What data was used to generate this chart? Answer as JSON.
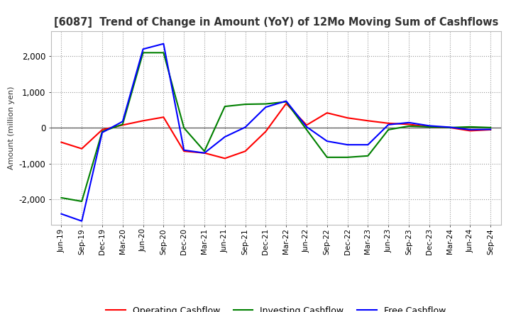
{
  "title": "[6087]  Trend of Change in Amount (YoY) of 12Mo Moving Sum of Cashflows",
  "ylabel": "Amount (million yen)",
  "x_labels": [
    "Jun-19",
    "Sep-19",
    "Dec-19",
    "Mar-20",
    "Jun-20",
    "Sep-20",
    "Dec-20",
    "Mar-21",
    "Jun-21",
    "Sep-21",
    "Dec-21",
    "Mar-22",
    "Jun-22",
    "Sep-22",
    "Dec-22",
    "Mar-23",
    "Jun-23",
    "Sep-23",
    "Dec-23",
    "Mar-24",
    "Jun-24",
    "Sep-24"
  ],
  "operating": [
    -400,
    -580,
    -50,
    80,
    200,
    300,
    -650,
    -700,
    -850,
    -650,
    -100,
    680,
    80,
    420,
    280,
    200,
    130,
    100,
    30,
    10,
    -80,
    -50
  ],
  "investing": [
    -1950,
    -2050,
    -100,
    100,
    2100,
    2100,
    0,
    -650,
    600,
    660,
    670,
    730,
    -50,
    -820,
    -820,
    -780,
    -50,
    50,
    30,
    10,
    30,
    10
  ],
  "free": [
    -2400,
    -2600,
    -130,
    180,
    2200,
    2350,
    -620,
    -700,
    -250,
    20,
    580,
    750,
    30,
    -370,
    -470,
    -470,
    90,
    150,
    60,
    20,
    -50,
    -40
  ],
  "ylim": [
    -2700,
    2700
  ],
  "yticks": [
    -2000,
    -1000,
    0,
    1000,
    2000
  ],
  "operating_color": "#ff0000",
  "investing_color": "#008000",
  "free_color": "#0000ff",
  "background_color": "#ffffff",
  "grid_color": "#999999",
  "title_color": "#333333",
  "zero_line_color": "#555555"
}
